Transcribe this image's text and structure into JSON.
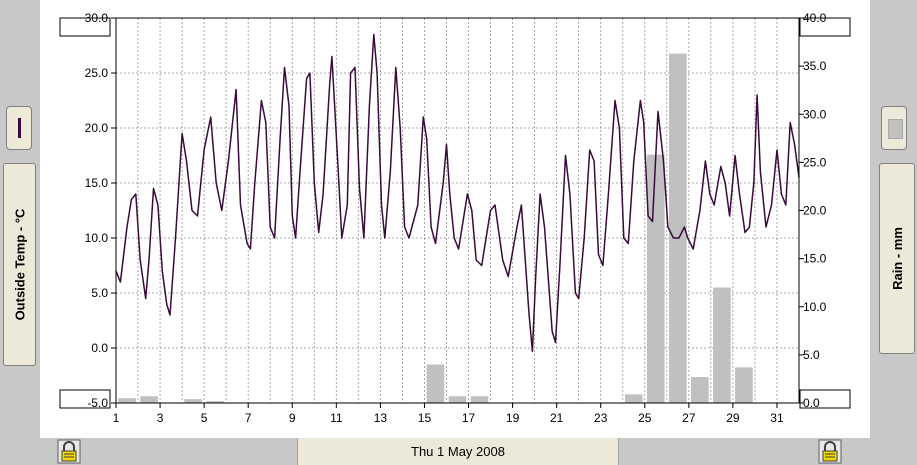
{
  "footer": {
    "date_label": "Thu 1 May 2008"
  },
  "left_axis": {
    "label": "Outside Temp - °C",
    "swatch_color": "#3a0a3a"
  },
  "right_axis": {
    "label": "Rain - mm",
    "swatch_color": "#c0c0c0"
  },
  "icons": [
    "lock-icon",
    "lock-icon"
  ],
  "chart_data": {
    "type": "line+bar",
    "x_ticks": [
      "1",
      "3",
      "5",
      "7",
      "9",
      "11",
      "13",
      "15",
      "17",
      "19",
      "21",
      "23",
      "25",
      "27",
      "29",
      "31"
    ],
    "xlim": [
      1,
      32
    ],
    "grid": true,
    "left_axis": {
      "ticks": [
        "30.0",
        "25.0",
        "20.0",
        "15.0",
        "10.0",
        "5.0",
        "0.0",
        "-5.0"
      ],
      "ylim": [
        -5,
        30
      ]
    },
    "right_axis": {
      "ticks": [
        "40.0",
        "35.0",
        "30.0",
        "25.0",
        "20.0",
        "15.0",
        "10.0",
        "5.0",
        "0.0"
      ],
      "ylim": [
        0,
        40
      ]
    },
    "temperature_series": {
      "color": "#3a0a3a",
      "points": [
        [
          1.0,
          7.0
        ],
        [
          1.2,
          6.0
        ],
        [
          1.5,
          11.0
        ],
        [
          1.7,
          13.5
        ],
        [
          1.9,
          14.0
        ],
        [
          2.1,
          8.0
        ],
        [
          2.35,
          4.5
        ],
        [
          2.5,
          8.0
        ],
        [
          2.7,
          14.5
        ],
        [
          2.9,
          13.0
        ],
        [
          3.1,
          7.0
        ],
        [
          3.3,
          4.0
        ],
        [
          3.45,
          3.0
        ],
        [
          3.7,
          10.0
        ],
        [
          4.0,
          19.5
        ],
        [
          4.2,
          17.0
        ],
        [
          4.45,
          12.5
        ],
        [
          4.7,
          12.0
        ],
        [
          5.0,
          18.0
        ],
        [
          5.3,
          21.0
        ],
        [
          5.55,
          15.0
        ],
        [
          5.8,
          12.5
        ],
        [
          6.1,
          17.0
        ],
        [
          6.45,
          23.5
        ],
        [
          6.65,
          13.0
        ],
        [
          6.95,
          9.5
        ],
        [
          7.1,
          9.0
        ],
        [
          7.3,
          15.0
        ],
        [
          7.6,
          22.5
        ],
        [
          7.8,
          20.5
        ],
        [
          8.0,
          11.0
        ],
        [
          8.2,
          10.0
        ],
        [
          8.45,
          19.0
        ],
        [
          8.65,
          25.5
        ],
        [
          8.85,
          22.0
        ],
        [
          9.0,
          12.0
        ],
        [
          9.15,
          10.0
        ],
        [
          9.35,
          16.0
        ],
        [
          9.65,
          24.5
        ],
        [
          9.8,
          25.0
        ],
        [
          10.0,
          15.0
        ],
        [
          10.2,
          10.5
        ],
        [
          10.4,
          14.0
        ],
        [
          10.7,
          24.0
        ],
        [
          10.8,
          26.5
        ],
        [
          11.05,
          17.5
        ],
        [
          11.25,
          10.0
        ],
        [
          11.5,
          13.0
        ],
        [
          11.65,
          25.0
        ],
        [
          11.85,
          25.5
        ],
        [
          12.05,
          14.5
        ],
        [
          12.25,
          10.0
        ],
        [
          12.5,
          22.0
        ],
        [
          12.7,
          28.5
        ],
        [
          12.85,
          25.0
        ],
        [
          13.05,
          13.0
        ],
        [
          13.2,
          10.0
        ],
        [
          13.45,
          16.0
        ],
        [
          13.7,
          25.5
        ],
        [
          13.9,
          20.0
        ],
        [
          14.1,
          11.0
        ],
        [
          14.3,
          10.0
        ],
        [
          14.7,
          13.0
        ],
        [
          14.95,
          21.0
        ],
        [
          15.1,
          19.0
        ],
        [
          15.3,
          11.0
        ],
        [
          15.5,
          9.5
        ],
        [
          15.85,
          15.0
        ],
        [
          16.0,
          18.5
        ],
        [
          16.15,
          14.0
        ],
        [
          16.35,
          10.0
        ],
        [
          16.55,
          9.0
        ],
        [
          16.95,
          14.0
        ],
        [
          17.15,
          12.5
        ],
        [
          17.35,
          8.0
        ],
        [
          17.6,
          7.5
        ],
        [
          18.0,
          12.5
        ],
        [
          18.2,
          13.0
        ],
        [
          18.55,
          8.0
        ],
        [
          18.8,
          6.5
        ],
        [
          19.2,
          11.0
        ],
        [
          19.4,
          13.0
        ],
        [
          19.75,
          3.0
        ],
        [
          19.9,
          -0.3
        ],
        [
          20.05,
          6.5
        ],
        [
          20.25,
          14.0
        ],
        [
          20.45,
          11.0
        ],
        [
          20.8,
          1.5
        ],
        [
          20.95,
          0.5
        ],
        [
          21.15,
          7.5
        ],
        [
          21.4,
          17.5
        ],
        [
          21.6,
          14.0
        ],
        [
          21.85,
          5.0
        ],
        [
          22.0,
          4.5
        ],
        [
          22.25,
          10.0
        ],
        [
          22.5,
          18.0
        ],
        [
          22.7,
          17.0
        ],
        [
          22.9,
          8.5
        ],
        [
          23.1,
          7.5
        ],
        [
          23.35,
          14.0
        ],
        [
          23.65,
          22.5
        ],
        [
          23.85,
          20.0
        ],
        [
          24.05,
          10.0
        ],
        [
          24.25,
          9.5
        ],
        [
          24.5,
          17.0
        ],
        [
          24.8,
          22.5
        ],
        [
          24.95,
          20.5
        ],
        [
          25.15,
          12.0
        ],
        [
          25.35,
          11.5
        ],
        [
          25.6,
          21.5
        ],
        [
          25.85,
          17.0
        ],
        [
          26.05,
          11.0
        ],
        [
          26.3,
          10.0
        ],
        [
          26.55,
          10.0
        ],
        [
          26.8,
          11.0
        ],
        [
          26.95,
          10.0
        ],
        [
          27.2,
          9.0
        ],
        [
          27.5,
          12.5
        ],
        [
          27.75,
          17.0
        ],
        [
          27.95,
          14.0
        ],
        [
          28.15,
          13.0
        ],
        [
          28.45,
          16.5
        ],
        [
          28.65,
          15.0
        ],
        [
          28.85,
          12.0
        ],
        [
          29.1,
          17.5
        ],
        [
          29.3,
          14.0
        ],
        [
          29.55,
          10.5
        ],
        [
          29.75,
          11.0
        ],
        [
          29.95,
          15.0
        ],
        [
          30.1,
          23.0
        ],
        [
          30.25,
          16.0
        ],
        [
          30.5,
          11.0
        ],
        [
          30.75,
          13.0
        ],
        [
          31.0,
          18.0
        ],
        [
          31.2,
          14.0
        ],
        [
          31.4,
          13.0
        ],
        [
          31.6,
          20.5
        ],
        [
          31.8,
          18.5
        ],
        [
          32.0,
          15.5
        ]
      ]
    },
    "rain_series": {
      "color": "#c0c0c0",
      "bar_width_days": 0.8,
      "points": [
        [
          1.5,
          0.5
        ],
        [
          2.5,
          0.7
        ],
        [
          4.5,
          0.4
        ],
        [
          5.5,
          0.2
        ],
        [
          15.5,
          4.0
        ],
        [
          16.5,
          0.7
        ],
        [
          17.5,
          0.7
        ],
        [
          24.5,
          0.9
        ],
        [
          25.5,
          25.8
        ],
        [
          26.5,
          36.3
        ],
        [
          27.5,
          2.7
        ],
        [
          28.5,
          12.0
        ],
        [
          29.5,
          3.7
        ]
      ]
    }
  }
}
